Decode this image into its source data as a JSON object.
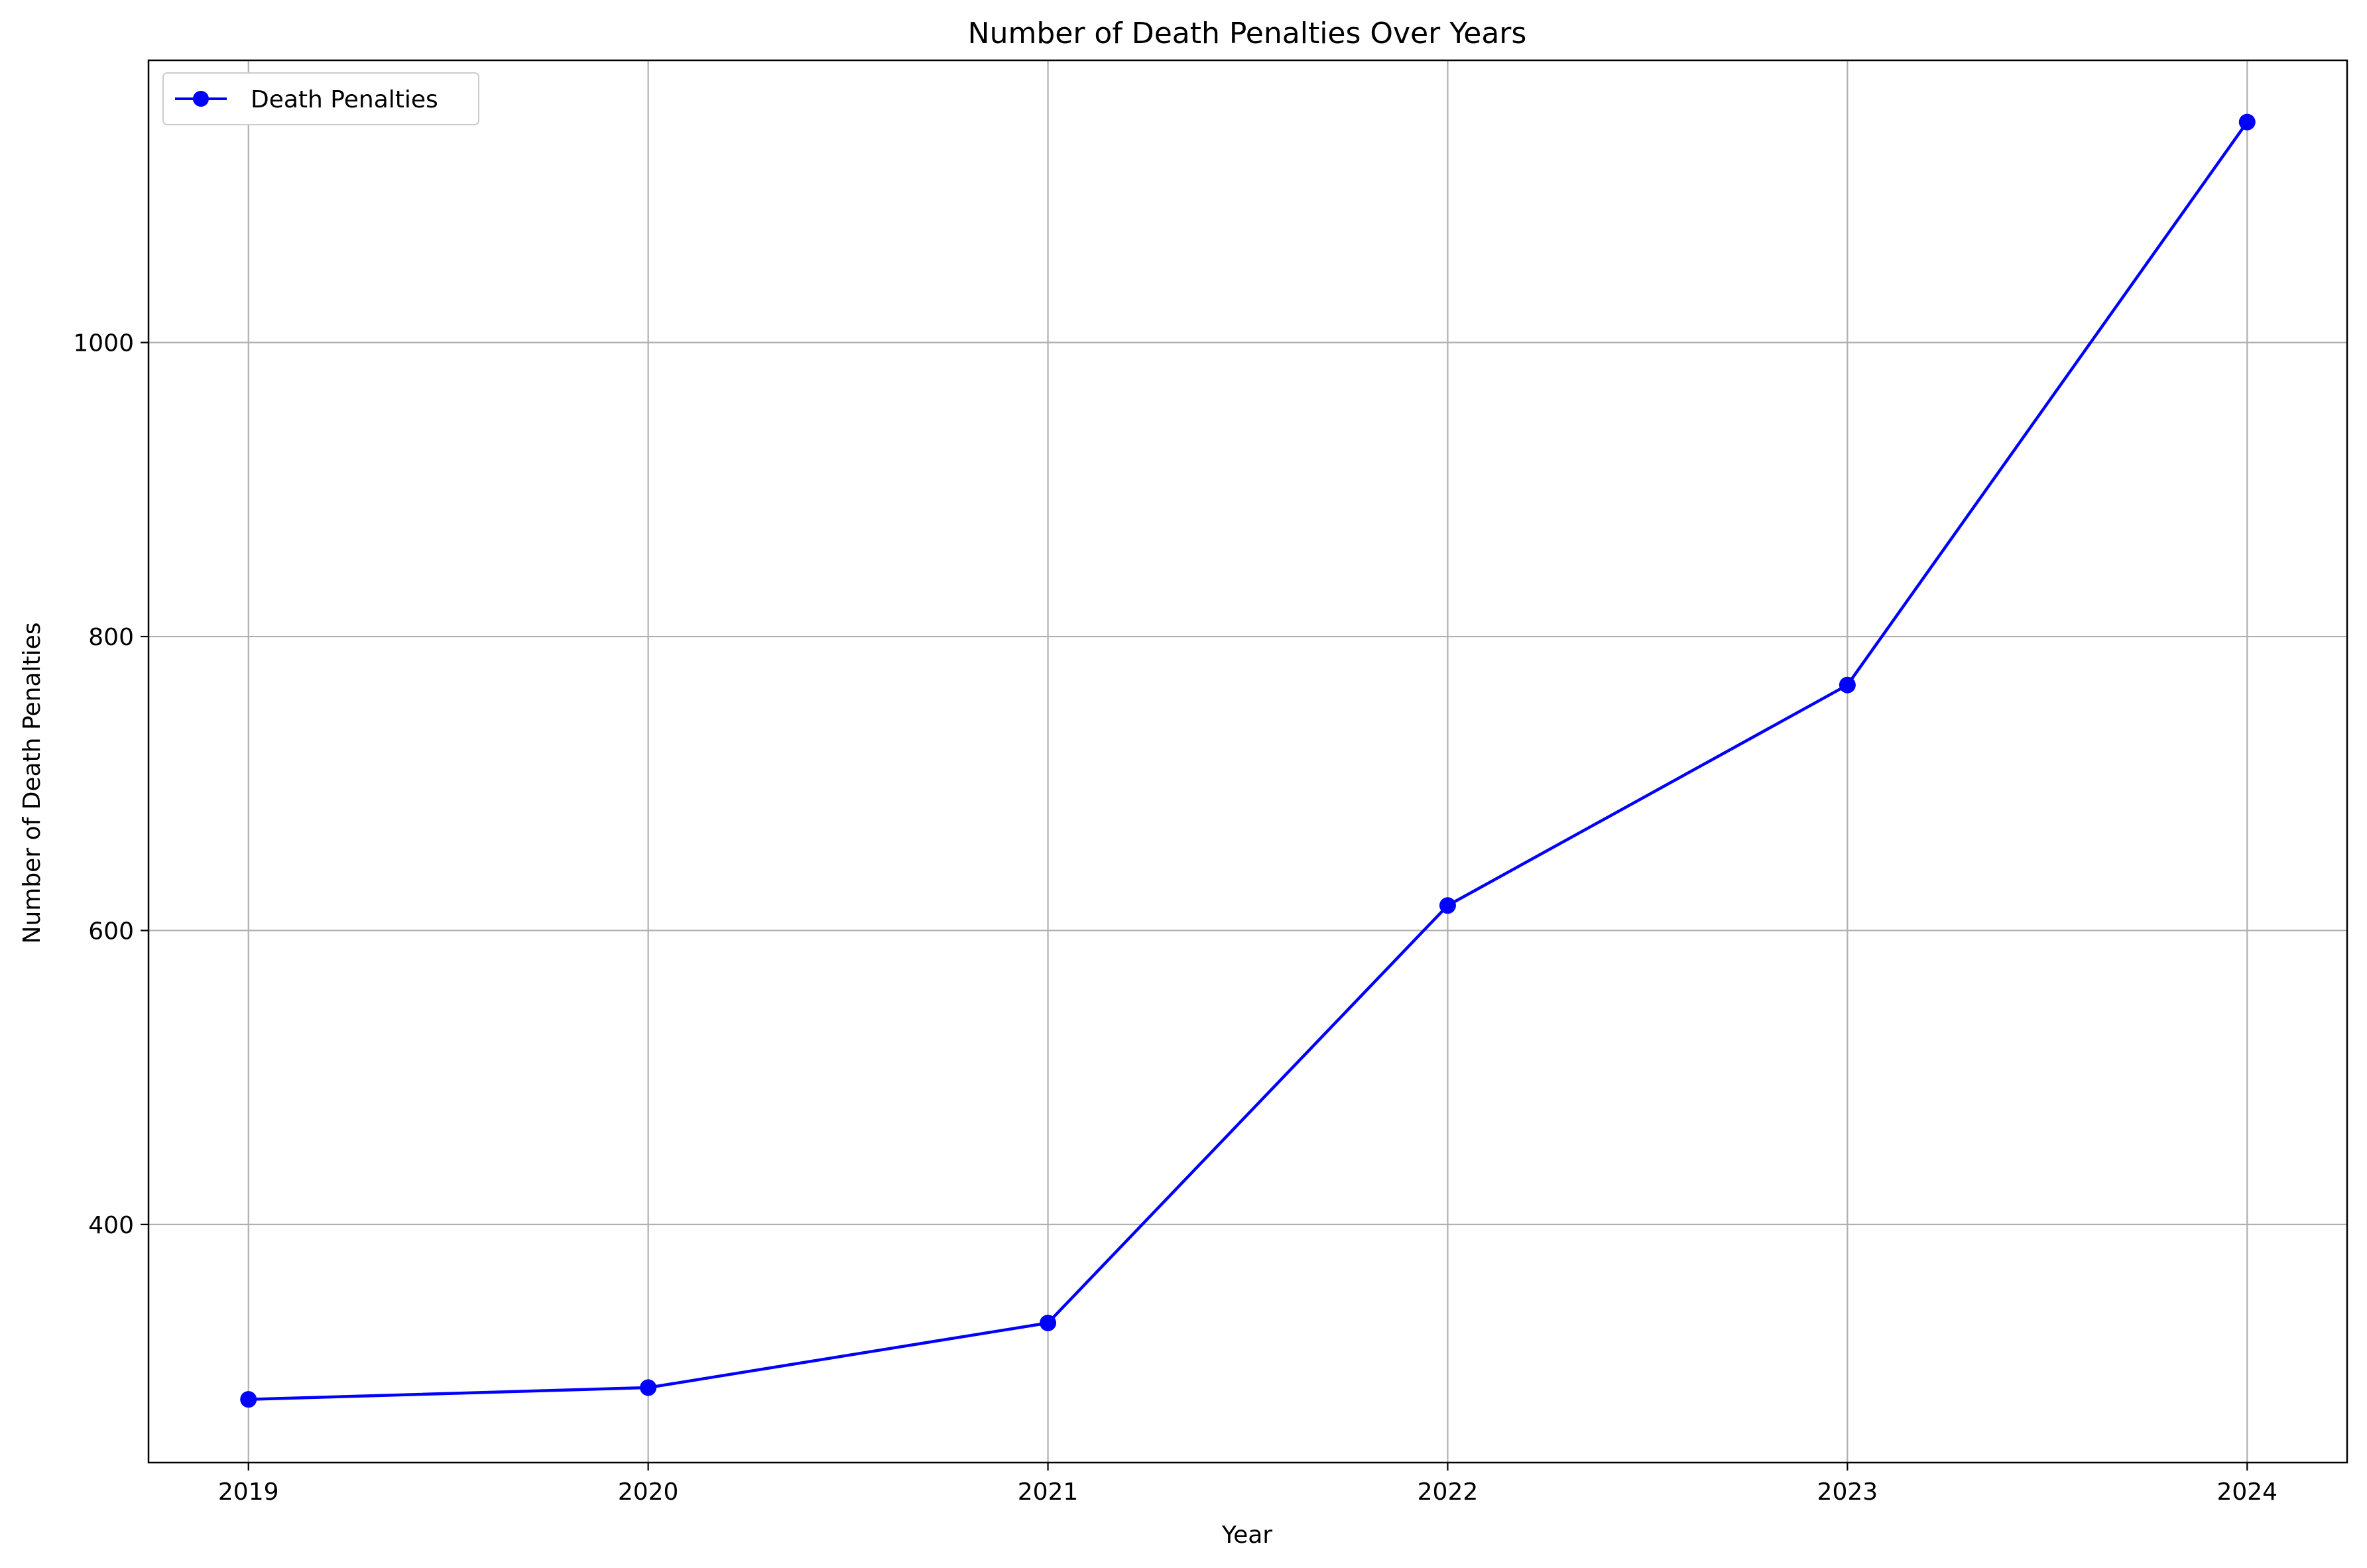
{
  "chart_data": {
    "type": "line",
    "title": "Number of Death Penalties Over Years",
    "xlabel": "Year",
    "ylabel": "Number of Death Penalties",
    "x": [
      2019,
      2020,
      2021,
      2022,
      2023,
      2024
    ],
    "x_ticks": [
      "2019",
      "2020",
      "2021",
      "2022",
      "2023",
      "2024"
    ],
    "y_ticks": [
      "400",
      "600",
      "800",
      "1000"
    ],
    "y_tick_values": [
      400,
      600,
      800,
      1000
    ],
    "ylim": [
      238,
      1192
    ],
    "xlim": [
      2018.75,
      2024.25
    ],
    "grid": true,
    "legend_position": "top-left",
    "series": [
      {
        "name": "Death Penalties",
        "color": "#0000ff",
        "marker": "circle",
        "values": [
          281,
          289,
          333,
          617,
          767,
          1150
        ]
      }
    ]
  }
}
